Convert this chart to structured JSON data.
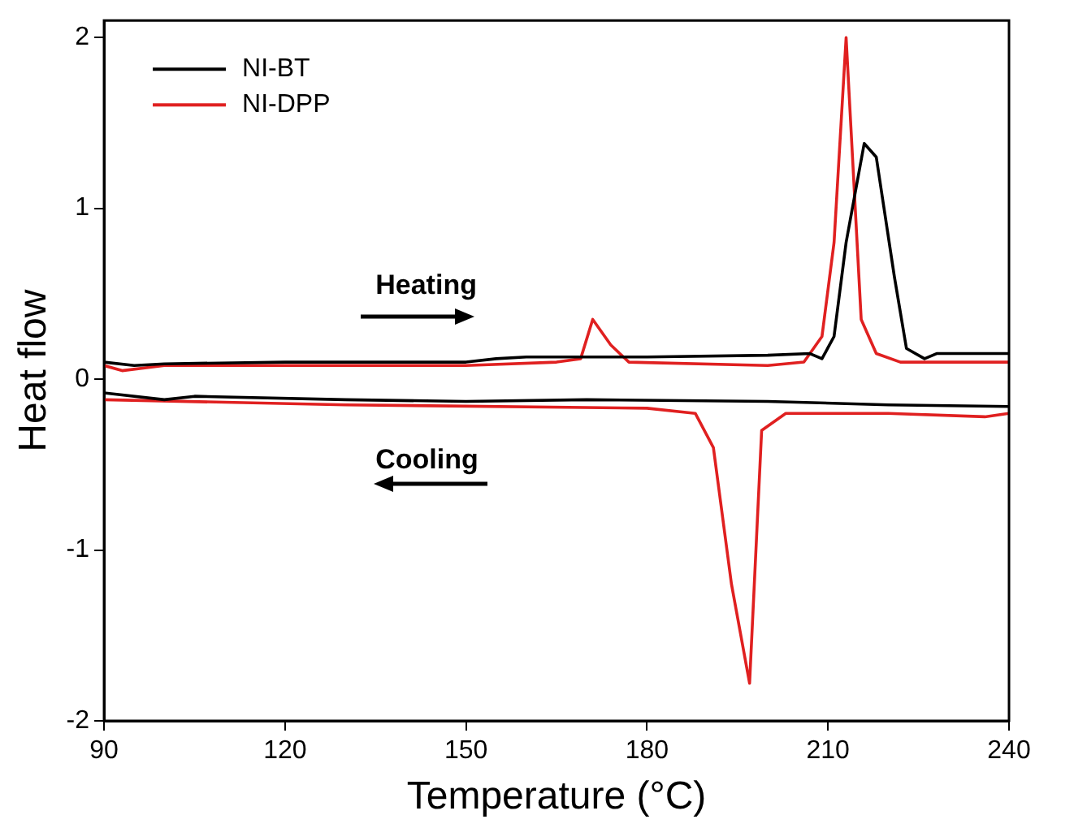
{
  "chart_data": {
    "type": "line",
    "xlabel": "Temperature (°C)",
    "ylabel": "Heat flow",
    "xlim": [
      90,
      240
    ],
    "xticks": [
      90,
      120,
      150,
      180,
      210,
      240
    ],
    "ylim": [
      -2,
      2.1
    ],
    "yticks": [
      -2,
      -1,
      0,
      1,
      2
    ],
    "grid": false,
    "legend": "top left",
    "marker": "none",
    "line_style": "solid",
    "annotations": [
      "Heating",
      "Cooling"
    ],
    "series": [
      {
        "name": "NI-BT",
        "color": "#000000",
        "x": [
          90,
          95,
          100,
          120,
          150,
          155,
          160,
          180,
          200,
          207,
          209,
          211,
          213,
          216,
          218,
          221,
          223,
          226,
          228,
          240
        ],
        "values": [
          0.1,
          0.08,
          0.09,
          0.1,
          0.1,
          0.12,
          0.13,
          0.13,
          0.14,
          0.15,
          0.12,
          0.25,
          0.8,
          1.38,
          1.3,
          0.6,
          0.18,
          0.12,
          0.15,
          0.15
        ]
      },
      {
        "name": "NI-DPP",
        "color": "#e02020",
        "x": [
          90,
          93,
          100,
          120,
          150,
          165,
          169,
          171,
          174,
          177,
          200,
          206,
          209,
          211,
          213,
          215.5,
          218,
          222,
          240
        ],
        "values": [
          0.08,
          0.05,
          0.08,
          0.08,
          0.08,
          0.1,
          0.12,
          0.35,
          0.2,
          0.1,
          0.08,
          0.1,
          0.25,
          0.8,
          2.0,
          0.35,
          0.15,
          0.1,
          0.1
        ]
      },
      {
        "color": "#000000",
        "x": [
          90,
          100,
          105,
          130,
          150,
          170,
          200,
          220,
          240
        ],
        "values": [
          -0.08,
          -0.12,
          -0.1,
          -0.12,
          -0.13,
          -0.12,
          -0.13,
          -0.15,
          -0.16
        ]
      },
      {
        "color": "#e02020",
        "x": [
          90,
          130,
          180,
          188,
          191,
          194,
          197,
          199,
          203,
          220,
          236,
          240
        ],
        "values": [
          -0.12,
          -0.15,
          -0.17,
          -0.2,
          -0.4,
          -1.2,
          -1.78,
          -0.3,
          -0.2,
          -0.2,
          -0.22,
          -0.2
        ]
      }
    ]
  }
}
